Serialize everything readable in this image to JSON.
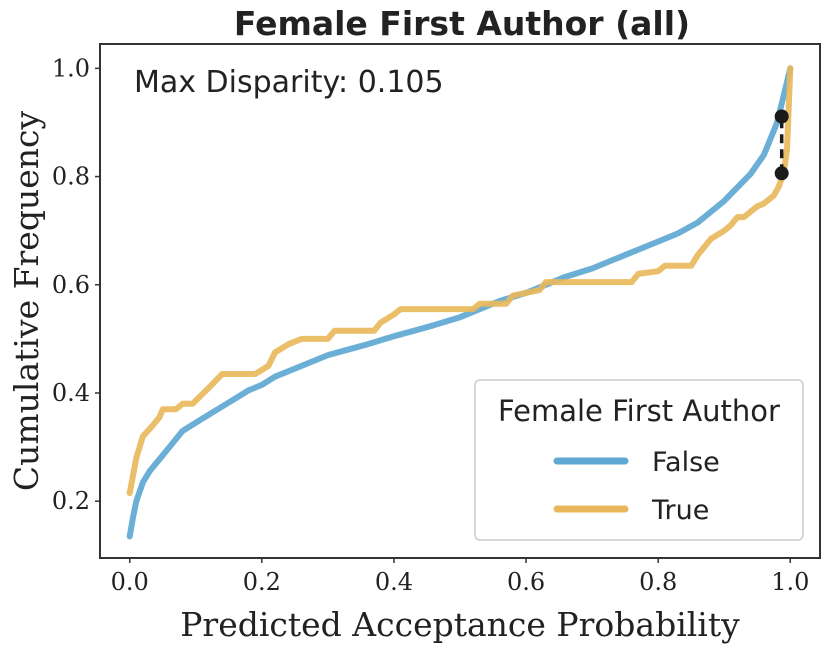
{
  "chart_data": {
    "type": "line",
    "title": "Female First Author (all)",
    "xlabel": "Predicted Acceptance Probability",
    "ylabel": "Cumulative Frequency",
    "xlim": [
      -0.045,
      1.045
    ],
    "ylim": [
      0.095,
      1.045
    ],
    "xticks": [
      0.0,
      0.2,
      0.4,
      0.6,
      0.8,
      1.0
    ],
    "xtick_labels": [
      "0.0",
      "0.2",
      "0.4",
      "0.6",
      "0.8",
      "1.0"
    ],
    "yticks": [
      0.2,
      0.4,
      0.6,
      0.8,
      1.0
    ],
    "ytick_labels": [
      "0.2",
      "0.4",
      "0.6",
      "0.8",
      "1.0"
    ],
    "grid": false,
    "annotation": "Max Disparity: 0.105",
    "legend": {
      "title": "Female First Author",
      "position": "lower right"
    },
    "disparity": {
      "x": 0.987,
      "y_low": 0.806,
      "y_high": 0.911,
      "color": "#1a1a1a"
    },
    "series": [
      {
        "name": "False",
        "color": "#5fa8d3",
        "x": [
          0.0,
          0.005,
          0.01,
          0.02,
          0.03,
          0.04,
          0.05,
          0.06,
          0.07,
          0.08,
          0.1,
          0.12,
          0.14,
          0.16,
          0.18,
          0.2,
          0.22,
          0.25,
          0.28,
          0.3,
          0.33,
          0.36,
          0.4,
          0.43,
          0.46,
          0.5,
          0.53,
          0.56,
          0.6,
          0.63,
          0.66,
          0.7,
          0.73,
          0.76,
          0.8,
          0.83,
          0.86,
          0.88,
          0.9,
          0.92,
          0.94,
          0.96,
          0.97,
          0.98,
          0.99,
          1.0
        ],
        "y": [
          0.135,
          0.17,
          0.2,
          0.235,
          0.255,
          0.27,
          0.285,
          0.3,
          0.315,
          0.33,
          0.345,
          0.36,
          0.375,
          0.39,
          0.405,
          0.415,
          0.43,
          0.445,
          0.46,
          0.47,
          0.48,
          0.49,
          0.505,
          0.515,
          0.525,
          0.54,
          0.555,
          0.57,
          0.585,
          0.6,
          0.615,
          0.63,
          0.645,
          0.66,
          0.68,
          0.695,
          0.715,
          0.735,
          0.755,
          0.78,
          0.805,
          0.84,
          0.87,
          0.9,
          0.95,
          1.0
        ]
      },
      {
        "name": "True",
        "color": "#e9b85c",
        "x": [
          0.0,
          0.01,
          0.02,
          0.035,
          0.045,
          0.05,
          0.07,
          0.08,
          0.095,
          0.12,
          0.14,
          0.19,
          0.21,
          0.22,
          0.24,
          0.26,
          0.3,
          0.31,
          0.37,
          0.38,
          0.4,
          0.41,
          0.52,
          0.53,
          0.57,
          0.58,
          0.62,
          0.63,
          0.76,
          0.77,
          0.8,
          0.81,
          0.85,
          0.86,
          0.87,
          0.88,
          0.9,
          0.91,
          0.92,
          0.93,
          0.95,
          0.96,
          0.975,
          0.982,
          0.99,
          0.995,
          1.0
        ],
        "y": [
          0.215,
          0.28,
          0.32,
          0.34,
          0.355,
          0.37,
          0.37,
          0.38,
          0.38,
          0.41,
          0.435,
          0.435,
          0.45,
          0.475,
          0.49,
          0.5,
          0.5,
          0.515,
          0.515,
          0.53,
          0.545,
          0.555,
          0.555,
          0.565,
          0.565,
          0.58,
          0.59,
          0.605,
          0.605,
          0.62,
          0.625,
          0.635,
          0.635,
          0.655,
          0.67,
          0.685,
          0.7,
          0.71,
          0.725,
          0.725,
          0.745,
          0.75,
          0.765,
          0.78,
          0.806,
          0.85,
          1.0
        ]
      }
    ]
  }
}
